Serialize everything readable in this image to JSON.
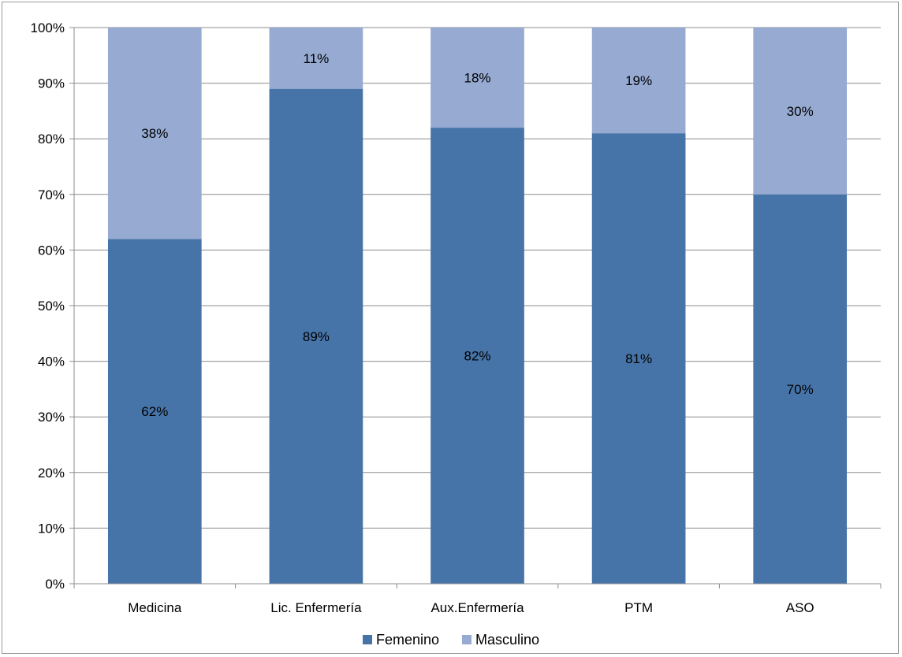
{
  "chart_data": {
    "type": "bar",
    "stacked": true,
    "percent": true,
    "categories": [
      "Medicina",
      "Lic. Enfermería",
      "Aux.Enfermería",
      "PTM",
      "ASO"
    ],
    "series": [
      {
        "name": "Femenino",
        "values": [
          62,
          89,
          82,
          81,
          70
        ],
        "labels": [
          "62%",
          "89%",
          "82%",
          "81%",
          "70%"
        ],
        "color": "#4674a8"
      },
      {
        "name": "Masculino",
        "values": [
          38,
          11,
          18,
          19,
          30
        ],
        "labels": [
          "38%",
          "11%",
          "18%",
          "19%",
          "30%"
        ],
        "color": "#96aad2"
      }
    ],
    "ylim": [
      0,
      100
    ],
    "yticks": [
      "0%",
      "10%",
      "20%",
      "30%",
      "40%",
      "50%",
      "60%",
      "70%",
      "80%",
      "90%",
      "100%"
    ],
    "grid": true,
    "legend": "bottom",
    "title": "",
    "xlabel": "",
    "ylabel": ""
  }
}
